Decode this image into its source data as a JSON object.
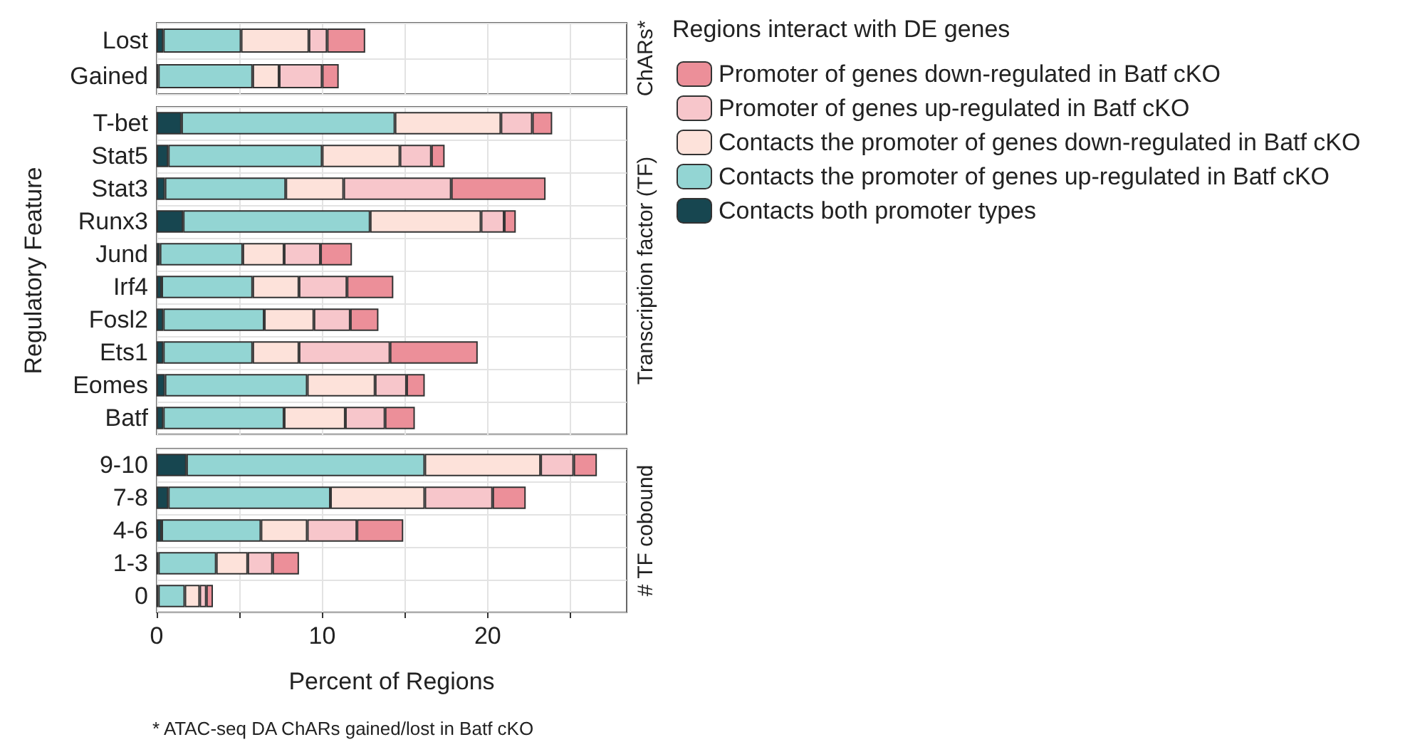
{
  "chart_data": [
    {
      "type": "bar",
      "orientation": "horizontal",
      "stacked": true,
      "categories": [
        "Lost",
        "Gained"
      ],
      "y2label": "ChARs*",
      "legend": "right",
      "legend_title": "Regions interact with DE genes",
      "grid": true,
      "tick_labels": "y",
      "xlim": [
        0,
        28.4
      ],
      "xticks": [
        0,
        {
          "value": 5,
          "label": null
        },
        {
          "value": 10,
          "label": null
        },
        {
          "value": 15,
          "label": null
        },
        {
          "value": 20,
          "label": null
        },
        {
          "value": 25,
          "label": null
        }
      ],
      "series": [
        {
          "name": "Contacts both promoter types",
          "color": "#174650",
          "values": [
            0.4,
            0.1
          ]
        },
        {
          "name": "Contacts the promoter of genes up-regulated in Batf cKO",
          "color": "#93d5d3",
          "values": [
            4.7,
            5.7
          ]
        },
        {
          "name": "Contacts the promoter of genes down-regulated in Batf cKO",
          "color": "#fde2da",
          "values": [
            4.1,
            1.6
          ]
        },
        {
          "name": "Promoter of genes up-regulated in Batf cKO",
          "color": "#f7c6cb",
          "values": [
            1.1,
            2.6
          ]
        },
        {
          "name": "Promoter of genes down-regulated in Batf cKO",
          "color": "#ec8f99",
          "values": [
            2.3,
            1.0
          ]
        }
      ]
    },
    {
      "type": "bar",
      "orientation": "horizontal",
      "stacked": true,
      "categories": [
        "T-bet",
        "Stat5",
        "Stat3",
        "Runx3",
        "Jund",
        "Irf4",
        "Fosl2",
        "Ets1",
        "Eomes",
        "Batf"
      ],
      "ylabel": "Regulatory Feature",
      "y2label": "Transcription factor (TF)",
      "grid": true,
      "tick_labels": "y",
      "xlim": [
        0,
        28.4
      ],
      "xticks": [
        0,
        {
          "value": 5,
          "label": null
        },
        {
          "value": 10,
          "label": null
        },
        {
          "value": 15,
          "label": null
        },
        {
          "value": 20,
          "label": null
        },
        {
          "value": 25,
          "label": null
        }
      ],
      "series": [
        {
          "color": "#174650",
          "values": [
            1.5,
            0.7,
            0.5,
            1.6,
            0.2,
            0.3,
            0.4,
            0.4,
            0.5,
            0.4
          ]
        },
        {
          "color": "#93d5d3",
          "values": [
            12.9,
            9.3,
            7.3,
            11.3,
            5.0,
            5.5,
            6.1,
            5.4,
            8.6,
            7.3
          ]
        },
        {
          "color": "#fde2da",
          "values": [
            6.4,
            4.7,
            3.5,
            6.7,
            2.5,
            2.8,
            3.0,
            2.8,
            4.1,
            3.7
          ]
        },
        {
          "color": "#f7c6cb",
          "values": [
            1.9,
            1.9,
            6.5,
            1.4,
            2.2,
            2.9,
            2.2,
            5.5,
            1.9,
            2.4
          ]
        },
        {
          "color": "#ec8f99",
          "values": [
            1.2,
            0.8,
            5.7,
            0.7,
            1.9,
            2.8,
            1.7,
            5.3,
            1.1,
            1.8
          ]
        }
      ]
    },
    {
      "type": "bar",
      "orientation": "horizontal",
      "stacked": true,
      "categories": [
        "9-10",
        "7-8",
        "4-6",
        "1-3",
        "0"
      ],
      "xlabel": "Percent of Regions",
      "y2label": "# TF cobound",
      "grid": true,
      "annotations": [
        "* ATAC-seq DA ChARs gained/lost in Batf cKO"
      ],
      "xlim": [
        0,
        28.4
      ],
      "xticks": [
        0,
        {
          "value": 5,
          "label": null
        },
        10,
        {
          "value": 15,
          "label": null
        },
        20,
        {
          "value": 25,
          "label": null
        }
      ],
      "series": [
        {
          "color": "#174650",
          "values": [
            1.8,
            0.7,
            0.3,
            0.1,
            0.1
          ]
        },
        {
          "color": "#93d5d3",
          "values": [
            14.4,
            9.8,
            6.0,
            3.5,
            1.6
          ]
        },
        {
          "color": "#fde2da",
          "values": [
            7.0,
            5.7,
            2.8,
            1.9,
            0.9
          ]
        },
        {
          "color": "#f7c6cb",
          "values": [
            2.0,
            4.1,
            3.0,
            1.5,
            0.4
          ]
        },
        {
          "color": "#ec8f99",
          "values": [
            1.4,
            2.0,
            2.8,
            1.6,
            0.4
          ]
        }
      ]
    }
  ]
}
